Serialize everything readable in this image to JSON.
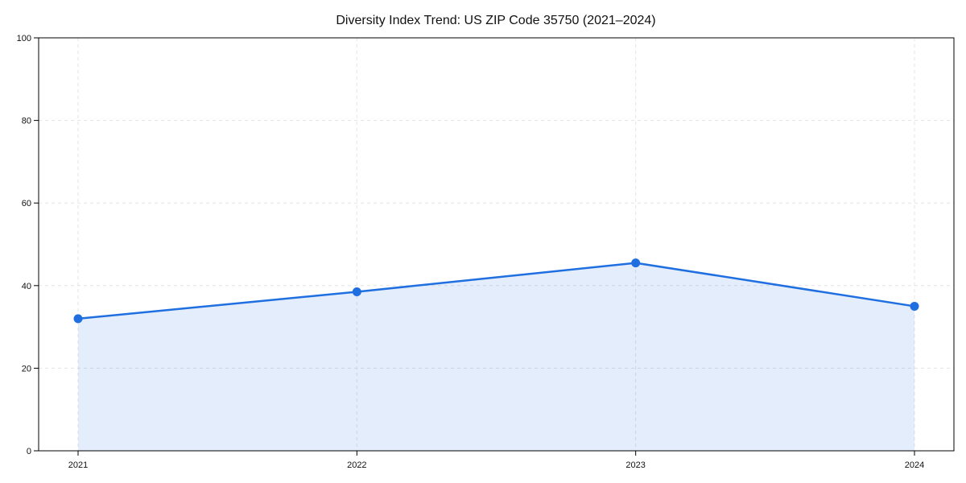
{
  "title": "Diversity Index Trend: US ZIP Code 35750 (2021–2024)",
  "chart_data": {
    "type": "area",
    "title": "Diversity Index Trend: US ZIP Code 35750 (2021–2024)",
    "categories": [
      "2021",
      "2022",
      "2023",
      "2024"
    ],
    "values": [
      32,
      38.5,
      45.5,
      35
    ],
    "series_name": "Diversity Index",
    "xlabel": "",
    "ylabel": "",
    "ylim": [
      0,
      100
    ],
    "yticks": [
      0,
      20,
      40,
      60,
      80,
      100
    ],
    "grid": true,
    "grid_style": "dashed",
    "legend": false,
    "colors": {
      "line": "#1f6fe0",
      "marker": "#1f6fe0",
      "fill": "rgba(31,111,224,0.12)",
      "grid": "#e3e3e3",
      "spine": "#000000",
      "text": "#111111"
    }
  }
}
